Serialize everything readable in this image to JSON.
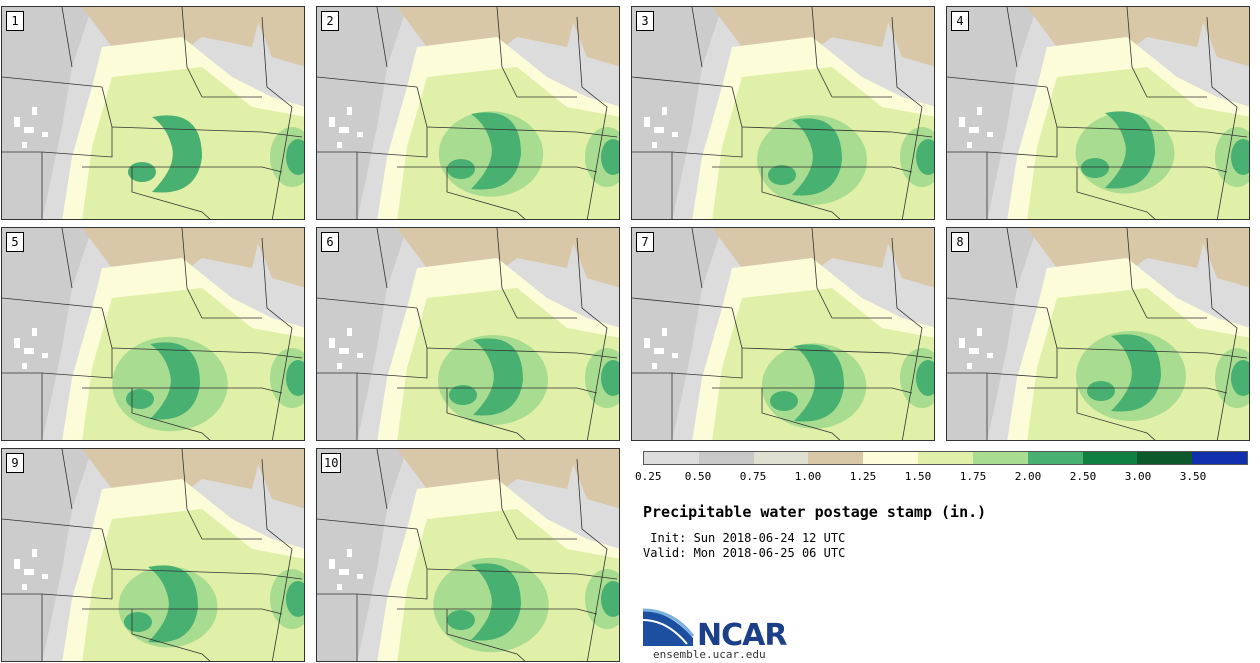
{
  "panels": [
    {
      "label": "1"
    },
    {
      "label": "2"
    },
    {
      "label": "3"
    },
    {
      "label": "4"
    },
    {
      "label": "5"
    },
    {
      "label": "6"
    },
    {
      "label": "7"
    },
    {
      "label": "8"
    },
    {
      "label": "9"
    },
    {
      "label": "10"
    }
  ],
  "colorbar": {
    "colors": [
      "#dcdcdc",
      "#c8c8c8",
      "#e0e0d0",
      "#d8c8a8",
      "#fcfcd8",
      "#e0f0a8",
      "#a8dc90",
      "#48b070",
      "#108040",
      "#0c5a2c",
      "#1030b0"
    ],
    "tick_labels": [
      "0.25",
      "0.50",
      "0.75",
      "1.00",
      "1.25",
      "1.50",
      "1.75",
      "2.00",
      "2.50",
      "3.00",
      "3.50"
    ]
  },
  "title": "Precipitable water postage stamp (in.)",
  "init": " Init: Sun 2018-06-24 12 UTC",
  "valid": "Valid: Mon 2018-06-25 06 UTC",
  "logo": {
    "text": "NCAR",
    "url": "ensemble.ucar.edu"
  }
}
